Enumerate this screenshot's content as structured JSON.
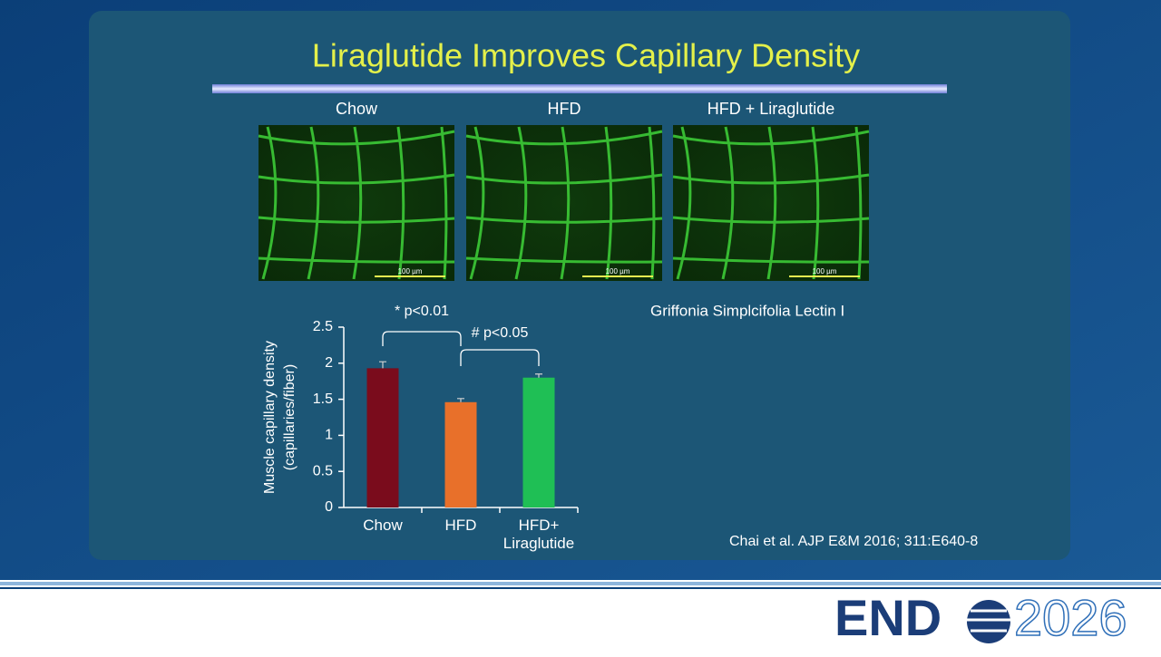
{
  "slide": {
    "title": "Liraglutide Improves Capillary Density",
    "image_labels": [
      "Chow",
      "HFD",
      "HFD + Liraglutide"
    ],
    "scale_labels": [
      "100 µm",
      "100 µm",
      "100 µm"
    ],
    "stain": "Griffonia Simplcifolia Lectin I",
    "citation": "Chai et al. AJP E&M 2016; 311:E640-8",
    "logo": {
      "brand": "END",
      "year": "2026"
    }
  },
  "chart_data": {
    "type": "bar",
    "y_label": [
      "Muscle capillary density",
      "(capillaries/fiber)"
    ],
    "categories": [
      "Chow",
      "HFD",
      "HFD+ Liraglutide"
    ],
    "values": [
      1.93,
      1.46,
      1.8
    ],
    "errors": [
      0.09,
      0.05,
      0.05
    ],
    "colors": [
      "#7a0c1c",
      "#e8702a",
      "#1fbf55"
    ],
    "ylim": [
      0,
      2.5
    ],
    "yticks": [
      0,
      0.5,
      1,
      1.5,
      2,
      2.5
    ],
    "annotations": [
      "* p<0.01",
      "# p<0.05"
    ]
  }
}
